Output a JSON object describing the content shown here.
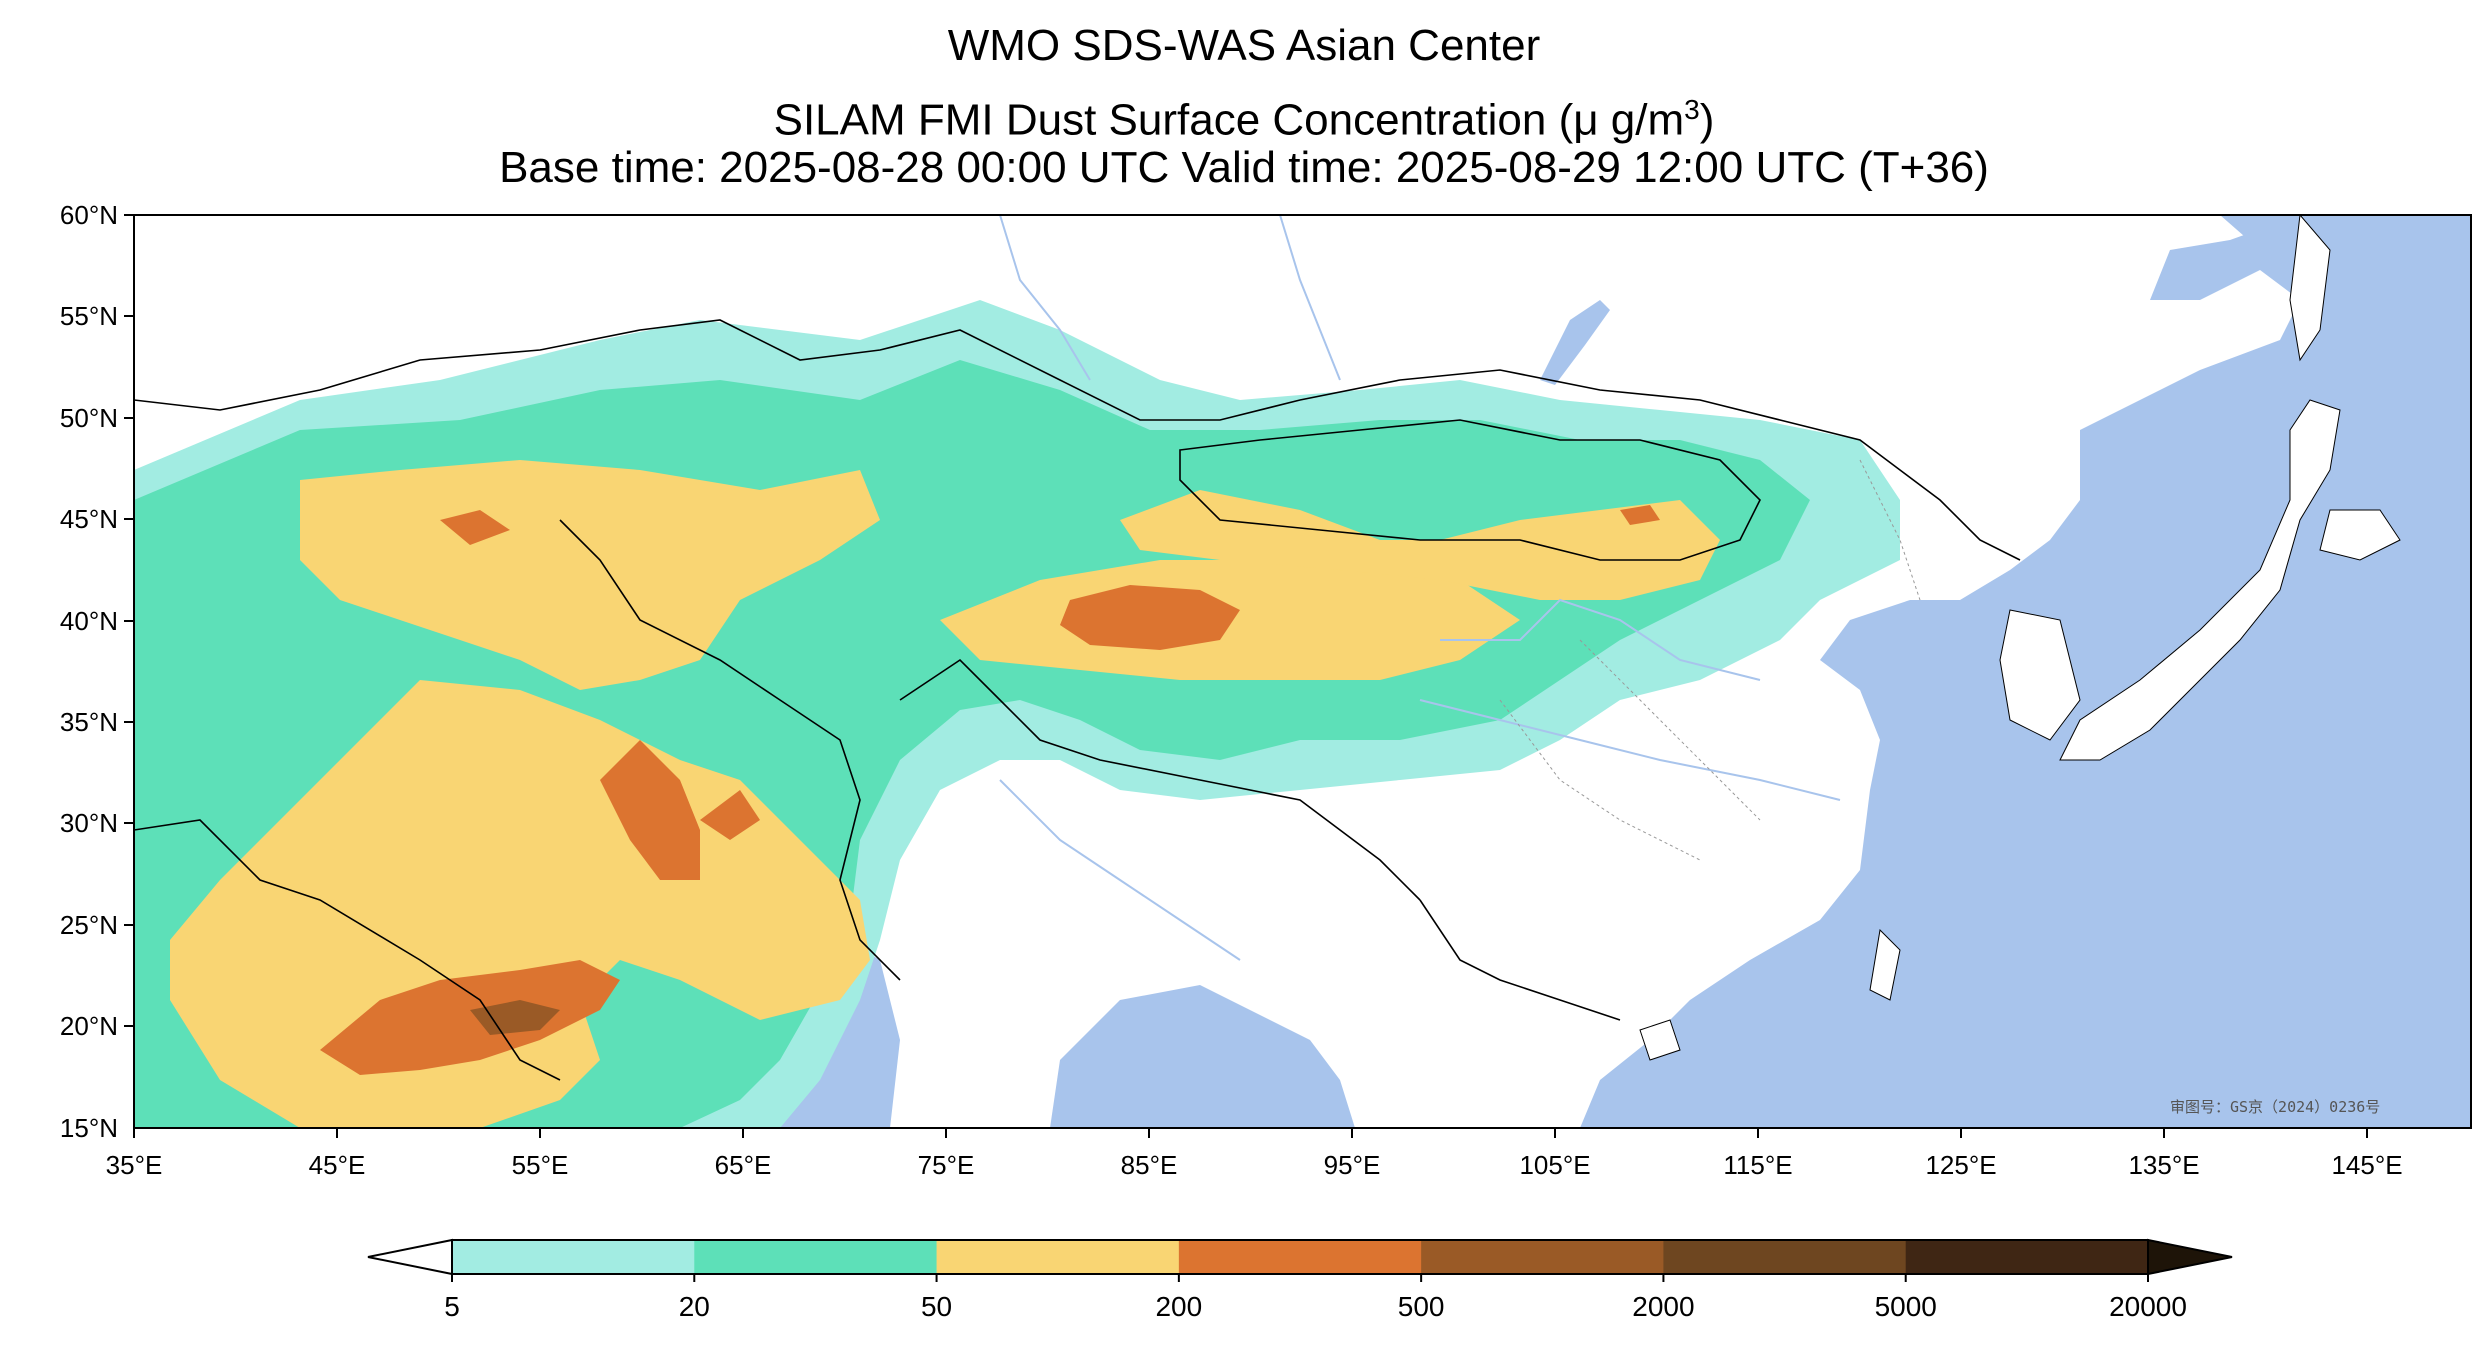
{
  "title": {
    "line1": "WMO SDS-WAS Asian Center",
    "line2_prefix": "SILAM FMI Dust Surface Concentration (",
    "line2_unit": "μ g/m",
    "line2_exp": "3",
    "line2_suffix": ")",
    "line3": "Base time: 2025-08-28 00:00 UTC Valid time: 2025-08-29 12:00 UTC (T+36)"
  },
  "map": {
    "lon_range": [
      35,
      150
    ],
    "lat_range": [
      15,
      60
    ],
    "lon_ticks": [
      "35°E",
      "45°E",
      "55°E",
      "65°E",
      "75°E",
      "85°E",
      "95°E",
      "105°E",
      "115°E",
      "125°E",
      "135°E",
      "145°E"
    ],
    "lat_ticks": [
      "60°N",
      "55°N",
      "50°N",
      "45°N",
      "40°N",
      "35°N",
      "30°N",
      "25°N",
      "20°N",
      "15°N"
    ],
    "watermark": "审图号：GS京（2024）0236号",
    "colors": {
      "ocean": "#a8c4ec",
      "land": "#ffffff",
      "border": "#000000",
      "river": "#a8c4ec"
    }
  },
  "colorbar": {
    "levels": [
      "5",
      "20",
      "50",
      "200",
      "500",
      "2000",
      "5000",
      "20000"
    ],
    "colors": [
      "#a2ece2",
      "#5de0b8",
      "#f9d573",
      "#dc7430",
      "#9a5a26",
      "#6e4620",
      "#3f2614"
    ],
    "extend": "both",
    "under_color": "#ffffff",
    "over_color": "#1e1408"
  }
}
